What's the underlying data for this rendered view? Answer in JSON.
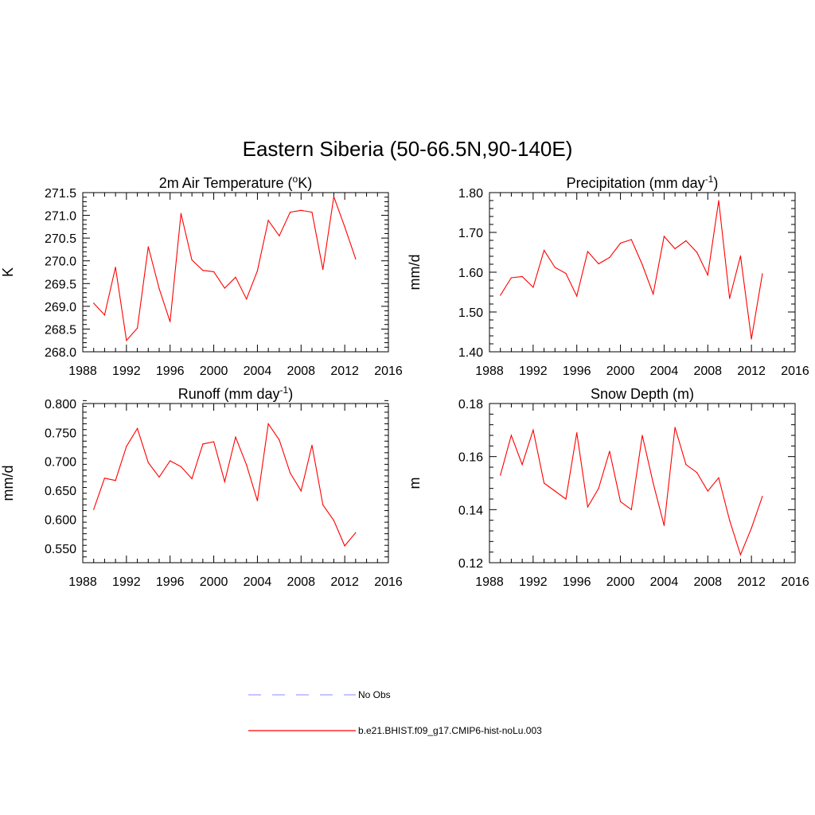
{
  "figure_title": "Eastern Siberia (50-66.5N,90-140E)",
  "chart_data": [
    {
      "type": "line",
      "title": "2m Air Temperature (",
      "title_sup": "o",
      "title_tail": "K)",
      "xlabel": "",
      "ylabel": "K",
      "xlim": [
        1988,
        2016
      ],
      "ylim": [
        268.0,
        271.5
      ],
      "xticks": [
        "1988",
        "1992",
        "1996",
        "2000",
        "2004",
        "2008",
        "2012",
        "2016"
      ],
      "yticks": [
        "268.0",
        "268.5",
        "269.0",
        "269.5",
        "270.0",
        "270.5",
        "271.0",
        "271.5"
      ],
      "grid": false,
      "x": [
        1989,
        1990,
        1991,
        1992,
        1993,
        1994,
        1995,
        1996,
        1997,
        1998,
        1999,
        2000,
        2001,
        2002,
        2003,
        2004,
        2005,
        2006,
        2007,
        2008,
        2009,
        2010,
        2011,
        2012,
        2013
      ],
      "series": [
        {
          "color": "#ff0000",
          "values": [
            269.07,
            268.81,
            269.86,
            268.25,
            268.52,
            270.31,
            269.39,
            268.66,
            271.04,
            270.02,
            269.79,
            269.76,
            269.4,
            269.64,
            269.16,
            269.78,
            270.89,
            270.55,
            271.07,
            271.11,
            271.07,
            269.81,
            271.41,
            270.75,
            270.04
          ]
        }
      ]
    },
    {
      "type": "line",
      "title": "Precipitation (mm day",
      "title_sup": "-1",
      "title_tail": ")",
      "xlabel": "",
      "ylabel": "mm/d",
      "xlim": [
        1988,
        2016
      ],
      "ylim": [
        1.4,
        1.8
      ],
      "xticks": [
        "1988",
        "1992",
        "1996",
        "2000",
        "2004",
        "2008",
        "2012",
        "2016"
      ],
      "yticks": [
        "1.40",
        "1.50",
        "1.60",
        "1.70",
        "1.80"
      ],
      "grid": false,
      "x": [
        1989,
        1990,
        1991,
        1992,
        1993,
        1994,
        1995,
        1996,
        1997,
        1998,
        1999,
        2000,
        2001,
        2002,
        2003,
        2004,
        2005,
        2006,
        2007,
        2008,
        2009,
        2010,
        2011,
        2012,
        2013
      ],
      "series": [
        {
          "color": "#ff0000",
          "values": [
            1.542,
            1.586,
            1.589,
            1.562,
            1.655,
            1.612,
            1.597,
            1.54,
            1.652,
            1.621,
            1.637,
            1.673,
            1.682,
            1.619,
            1.545,
            1.69,
            1.659,
            1.679,
            1.65,
            1.593,
            1.78,
            1.534,
            1.641,
            1.432,
            1.596
          ]
        }
      ]
    },
    {
      "type": "line",
      "title": "Runoff (mm day",
      "title_sup": "-1",
      "title_tail": ")",
      "xlabel": "",
      "ylabel": "mm/d",
      "xlim": [
        1988,
        2016
      ],
      "ylim": [
        0.525,
        0.8
      ],
      "xticks": [
        "1988",
        "1992",
        "1996",
        "2000",
        "2004",
        "2008",
        "2012",
        "2016"
      ],
      "yticks": [
        "0.550",
        "0.600",
        "0.650",
        "0.700",
        "0.750",
        "0.800"
      ],
      "grid": false,
      "x": [
        1989,
        1990,
        1991,
        1992,
        1993,
        1994,
        1995,
        1996,
        1997,
        1998,
        1999,
        2000,
        2001,
        2002,
        2003,
        2004,
        2005,
        2006,
        2007,
        2008,
        2009,
        2010,
        2011,
        2012,
        2013
      ],
      "series": [
        {
          "color": "#ff0000",
          "values": [
            0.617,
            0.671,
            0.667,
            0.726,
            0.757,
            0.698,
            0.673,
            0.701,
            0.691,
            0.67,
            0.73,
            0.734,
            0.665,
            0.742,
            0.694,
            0.632,
            0.765,
            0.737,
            0.68,
            0.649,
            0.728,
            0.625,
            0.598,
            0.554,
            0.577
          ]
        }
      ]
    },
    {
      "type": "line",
      "title": "Snow Depth (m)",
      "title_sup": "",
      "title_tail": "",
      "xlabel": "",
      "ylabel": "m",
      "xlim": [
        1988,
        2016
      ],
      "ylim": [
        0.12,
        0.18
      ],
      "xticks": [
        "1988",
        "1992",
        "1996",
        "2000",
        "2004",
        "2008",
        "2012",
        "2016"
      ],
      "yticks": [
        "0.12",
        "0.14",
        "0.16",
        "0.18"
      ],
      "grid": false,
      "x": [
        1989,
        1990,
        1991,
        1992,
        1993,
        1994,
        1995,
        1996,
        1997,
        1998,
        1999,
        2000,
        2001,
        2002,
        2003,
        2004,
        2005,
        2006,
        2007,
        2008,
        2009,
        2010,
        2011,
        2012,
        2013
      ],
      "series": [
        {
          "color": "#ff0000",
          "values": [
            0.153,
            0.168,
            0.157,
            0.17,
            0.15,
            0.147,
            0.144,
            0.169,
            0.141,
            0.148,
            0.162,
            0.143,
            0.14,
            0.168,
            0.15,
            0.134,
            0.171,
            0.157,
            0.154,
            0.147,
            0.152,
            0.136,
            0.123,
            0.133,
            0.145
          ]
        }
      ]
    }
  ],
  "legend": {
    "placement": "bottom-center",
    "items": [
      {
        "label": "No Obs",
        "color": "#a0a0ff",
        "style": "dashed"
      },
      {
        "label": "b.e21.BHIST.f09_g17.CMIP6-hist-noLu.003",
        "color": "#ff0000",
        "style": "solid"
      }
    ]
  }
}
